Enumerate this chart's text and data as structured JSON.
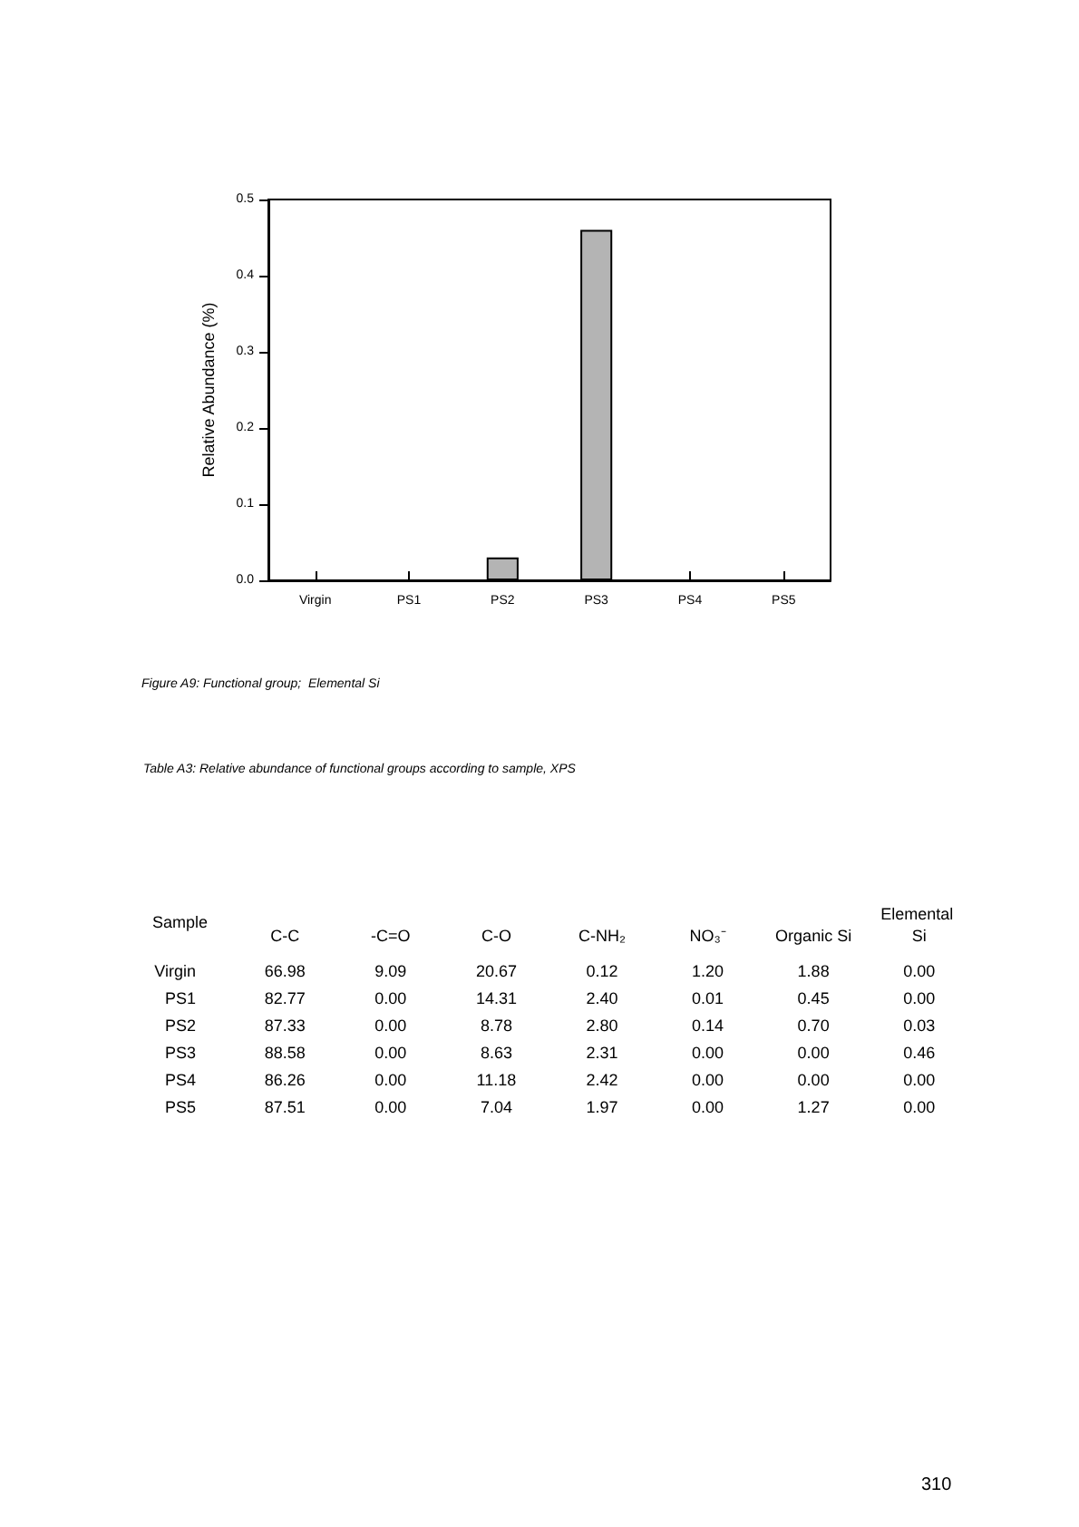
{
  "chart_data": [
    {
      "type": "bar",
      "categories": [
        "Virgin",
        "PS1",
        "PS2",
        "PS3",
        "PS4",
        "PS5"
      ],
      "values": [
        0,
        0,
        0.03,
        0.46,
        0,
        0
      ],
      "color": "#b4b4b4",
      "ylabel": "Relative Abundance (%)",
      "ylim": [
        0,
        0.5
      ],
      "yticks": [
        {
          "value": 0,
          "label": "0.0"
        },
        0.1,
        0.2,
        0.3,
        0.4,
        0.5
      ],
      "grid": false,
      "annotations": [
        "Figure A9: Functional group;  Elemental Si"
      ]
    },
    {
      "type": "heatmap",
      "title": "Table A3: Relative abundance of functional groups according to sample, XPS",
      "ylabel": "Sample",
      "categories": [
        "C-C",
        "-C=O",
        "C-O",
        "C-NH₂",
        "NO₃⁻",
        "Organic Si",
        "Elemental Si"
      ],
      "y_categories": [
        "Virgin",
        "PS1",
        "PS2",
        "PS3",
        "PS4",
        "PS5"
      ],
      "cells": [
        [
          66.98,
          9.09,
          20.67,
          0.12,
          1.2,
          1.88,
          0.0
        ],
        [
          82.77,
          0.0,
          14.31,
          2.4,
          0.01,
          0.45,
          0.0
        ],
        [
          87.33,
          0.0,
          8.78,
          2.8,
          0.14,
          0.7,
          0.03
        ],
        [
          88.58,
          0.0,
          8.63,
          2.31,
          0.0,
          0.0,
          0.46
        ],
        [
          86.26,
          0.0,
          11.18,
          2.42,
          0.0,
          0.0,
          0.0
        ],
        [
          87.51,
          0.0,
          7.04,
          1.97,
          0.0,
          1.27,
          0.0
        ]
      ],
      "cell_labels": [
        [
          "66.98",
          "9.09",
          "20.67",
          "0.12",
          "1.20",
          "1.88",
          "0.00"
        ],
        [
          "82.77",
          "0.00",
          "14.31",
          "2.40",
          "0.01",
          "0.45",
          "0.00"
        ],
        [
          "87.33",
          "0.00",
          "8.78",
          "2.80",
          "0.14",
          "0.70",
          "0.03"
        ],
        [
          "88.58",
          "0.00",
          "8.63",
          "2.31",
          "0.00",
          "0.00",
          "0.46"
        ],
        [
          "86.26",
          "0.00",
          "11.18",
          "2.42",
          "0.00",
          "0.00",
          "0.00"
        ],
        [
          "87.51",
          "0.00",
          "7.04",
          "1.97",
          "0.00",
          "1.27",
          "0.00"
        ]
      ],
      "annotations": [
        "310"
      ]
    }
  ]
}
